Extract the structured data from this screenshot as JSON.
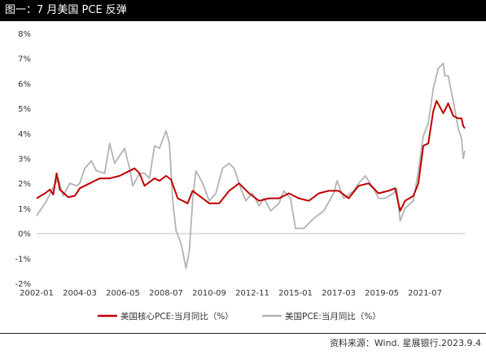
{
  "title": "图一：7 月美国 PCE 反弹",
  "source": "资料来源：Wind. 星展银行.2023.9.4",
  "chart_data": {
    "type": "line",
    "title": "图一：7 月美国 PCE 反弹",
    "xlabel": "",
    "ylabel": "",
    "x_tick_labels": [
      "2002-01",
      "2004-03",
      "2006-05",
      "2008-07",
      "2010-09",
      "2012-11",
      "2015-01",
      "2017-03",
      "2019-05",
      "2021-07"
    ],
    "y_tick_labels": [
      "-2%",
      "-1%",
      "0%",
      "1%",
      "2%",
      "3%",
      "4%",
      "5%",
      "6%",
      "7%",
      "8%"
    ],
    "ylim": [
      -2,
      8
    ],
    "xlim": [
      "2002-01",
      "2023-07"
    ],
    "grid": false,
    "legend_position": "bottom",
    "series": [
      {
        "name": "美国核心PCE:当月同比（%）",
        "color": "#c00000",
        "points": [
          [
            "2002-01",
            1.4
          ],
          [
            "2002-06",
            1.6
          ],
          [
            "2002-09",
            1.75
          ],
          [
            "2002-11",
            1.55
          ],
          [
            "2003-01",
            2.4
          ],
          [
            "2003-03",
            1.75
          ],
          [
            "2003-08",
            1.45
          ],
          [
            "2003-12",
            1.5
          ],
          [
            "2004-03",
            1.8
          ],
          [
            "2004-09",
            2.0
          ],
          [
            "2005-03",
            2.2
          ],
          [
            "2005-09",
            2.2
          ],
          [
            "2006-03",
            2.3
          ],
          [
            "2006-09",
            2.5
          ],
          [
            "2006-12",
            2.6
          ],
          [
            "2007-03",
            2.4
          ],
          [
            "2007-06",
            1.9
          ],
          [
            "2007-12",
            2.2
          ],
          [
            "2008-03",
            2.1
          ],
          [
            "2008-07",
            2.3
          ],
          [
            "2008-10",
            2.15
          ],
          [
            "2009-02",
            1.4
          ],
          [
            "2009-08",
            1.2
          ],
          [
            "2009-11",
            1.7
          ],
          [
            "2010-03",
            1.5
          ],
          [
            "2010-09",
            1.2
          ],
          [
            "2011-03",
            1.2
          ],
          [
            "2011-09",
            1.7
          ],
          [
            "2012-03",
            2.0
          ],
          [
            "2012-09",
            1.6
          ],
          [
            "2013-03",
            1.3
          ],
          [
            "2013-09",
            1.4
          ],
          [
            "2014-03",
            1.4
          ],
          [
            "2014-09",
            1.6
          ],
          [
            "2015-03",
            1.4
          ],
          [
            "2015-09",
            1.3
          ],
          [
            "2016-03",
            1.6
          ],
          [
            "2016-09",
            1.7
          ],
          [
            "2017-03",
            1.7
          ],
          [
            "2017-09",
            1.4
          ],
          [
            "2018-03",
            1.9
          ],
          [
            "2018-09",
            2.0
          ],
          [
            "2019-03",
            1.6
          ],
          [
            "2019-09",
            1.7
          ],
          [
            "2020-01",
            1.8
          ],
          [
            "2020-04",
            0.9
          ],
          [
            "2020-07",
            1.3
          ],
          [
            "2020-12",
            1.5
          ],
          [
            "2021-03",
            2.0
          ],
          [
            "2021-06",
            3.5
          ],
          [
            "2021-09",
            3.6
          ],
          [
            "2021-12",
            4.9
          ],
          [
            "2022-02",
            5.3
          ],
          [
            "2022-06",
            4.8
          ],
          [
            "2022-09",
            5.2
          ],
          [
            "2022-12",
            4.7
          ],
          [
            "2023-03",
            4.6
          ],
          [
            "2023-05",
            4.6
          ],
          [
            "2023-06",
            4.3
          ],
          [
            "2023-07",
            4.2
          ]
        ]
      },
      {
        "name": "美国PCE:当月同比（%）",
        "color": "#b3b3b3",
        "points": [
          [
            "2002-01",
            0.7
          ],
          [
            "2002-04",
            1.0
          ],
          [
            "2002-07",
            1.3
          ],
          [
            "2002-10",
            1.7
          ],
          [
            "2003-02",
            2.2
          ],
          [
            "2003-05",
            1.5
          ],
          [
            "2003-09",
            2.0
          ],
          [
            "2004-01",
            1.9
          ],
          [
            "2004-03",
            2.0
          ],
          [
            "2004-06",
            2.6
          ],
          [
            "2004-10",
            2.9
          ],
          [
            "2005-01",
            2.5
          ],
          [
            "2005-06",
            2.4
          ],
          [
            "2005-09",
            3.6
          ],
          [
            "2005-12",
            2.8
          ],
          [
            "2006-03",
            3.1
          ],
          [
            "2006-06",
            3.4
          ],
          [
            "2006-09",
            2.6
          ],
          [
            "2006-11",
            1.9
          ],
          [
            "2007-03",
            2.4
          ],
          [
            "2007-06",
            2.4
          ],
          [
            "2007-09",
            2.2
          ],
          [
            "2007-12",
            3.5
          ],
          [
            "2008-03",
            3.4
          ],
          [
            "2008-07",
            4.1
          ],
          [
            "2008-09",
            3.6
          ],
          [
            "2008-11",
            1.3
          ],
          [
            "2009-01",
            0.1
          ],
          [
            "2009-04",
            -0.4
          ],
          [
            "2009-07",
            -1.4
          ],
          [
            "2009-09",
            -0.7
          ],
          [
            "2009-11",
            1.3
          ],
          [
            "2010-01",
            2.5
          ],
          [
            "2010-05",
            2.0
          ],
          [
            "2010-09",
            1.3
          ],
          [
            "2011-01",
            1.6
          ],
          [
            "2011-05",
            2.6
          ],
          [
            "2011-09",
            2.8
          ],
          [
            "2011-12",
            2.6
          ],
          [
            "2012-04",
            1.8
          ],
          [
            "2012-07",
            1.3
          ],
          [
            "2012-11",
            1.6
          ],
          [
            "2013-03",
            1.1
          ],
          [
            "2013-06",
            1.4
          ],
          [
            "2013-10",
            0.9
          ],
          [
            "2014-03",
            1.2
          ],
          [
            "2014-06",
            1.7
          ],
          [
            "2014-10",
            1.4
          ],
          [
            "2015-01",
            0.2
          ],
          [
            "2015-06",
            0.2
          ],
          [
            "2015-12",
            0.6
          ],
          [
            "2016-06",
            0.9
          ],
          [
            "2016-12",
            1.6
          ],
          [
            "2017-02",
            2.1
          ],
          [
            "2017-06",
            1.4
          ],
          [
            "2017-12",
            1.7
          ],
          [
            "2018-03",
            2.0
          ],
          [
            "2018-07",
            2.3
          ],
          [
            "2018-12",
            1.8
          ],
          [
            "2019-03",
            1.4
          ],
          [
            "2019-07",
            1.4
          ],
          [
            "2019-12",
            1.6
          ],
          [
            "2020-02",
            1.8
          ],
          [
            "2020-04",
            0.5
          ],
          [
            "2020-07",
            1.0
          ],
          [
            "2020-12",
            1.3
          ],
          [
            "2021-03",
            2.5
          ],
          [
            "2021-06",
            3.9
          ],
          [
            "2021-09",
            4.4
          ],
          [
            "2021-12",
            5.8
          ],
          [
            "2022-03",
            6.6
          ],
          [
            "2022-06",
            6.8
          ],
          [
            "2022-07",
            6.3
          ],
          [
            "2022-09",
            6.3
          ],
          [
            "2022-12",
            5.3
          ],
          [
            "2023-03",
            4.2
          ],
          [
            "2023-05",
            3.8
          ],
          [
            "2023-06",
            3.0
          ],
          [
            "2023-07",
            3.3
          ]
        ]
      }
    ]
  }
}
